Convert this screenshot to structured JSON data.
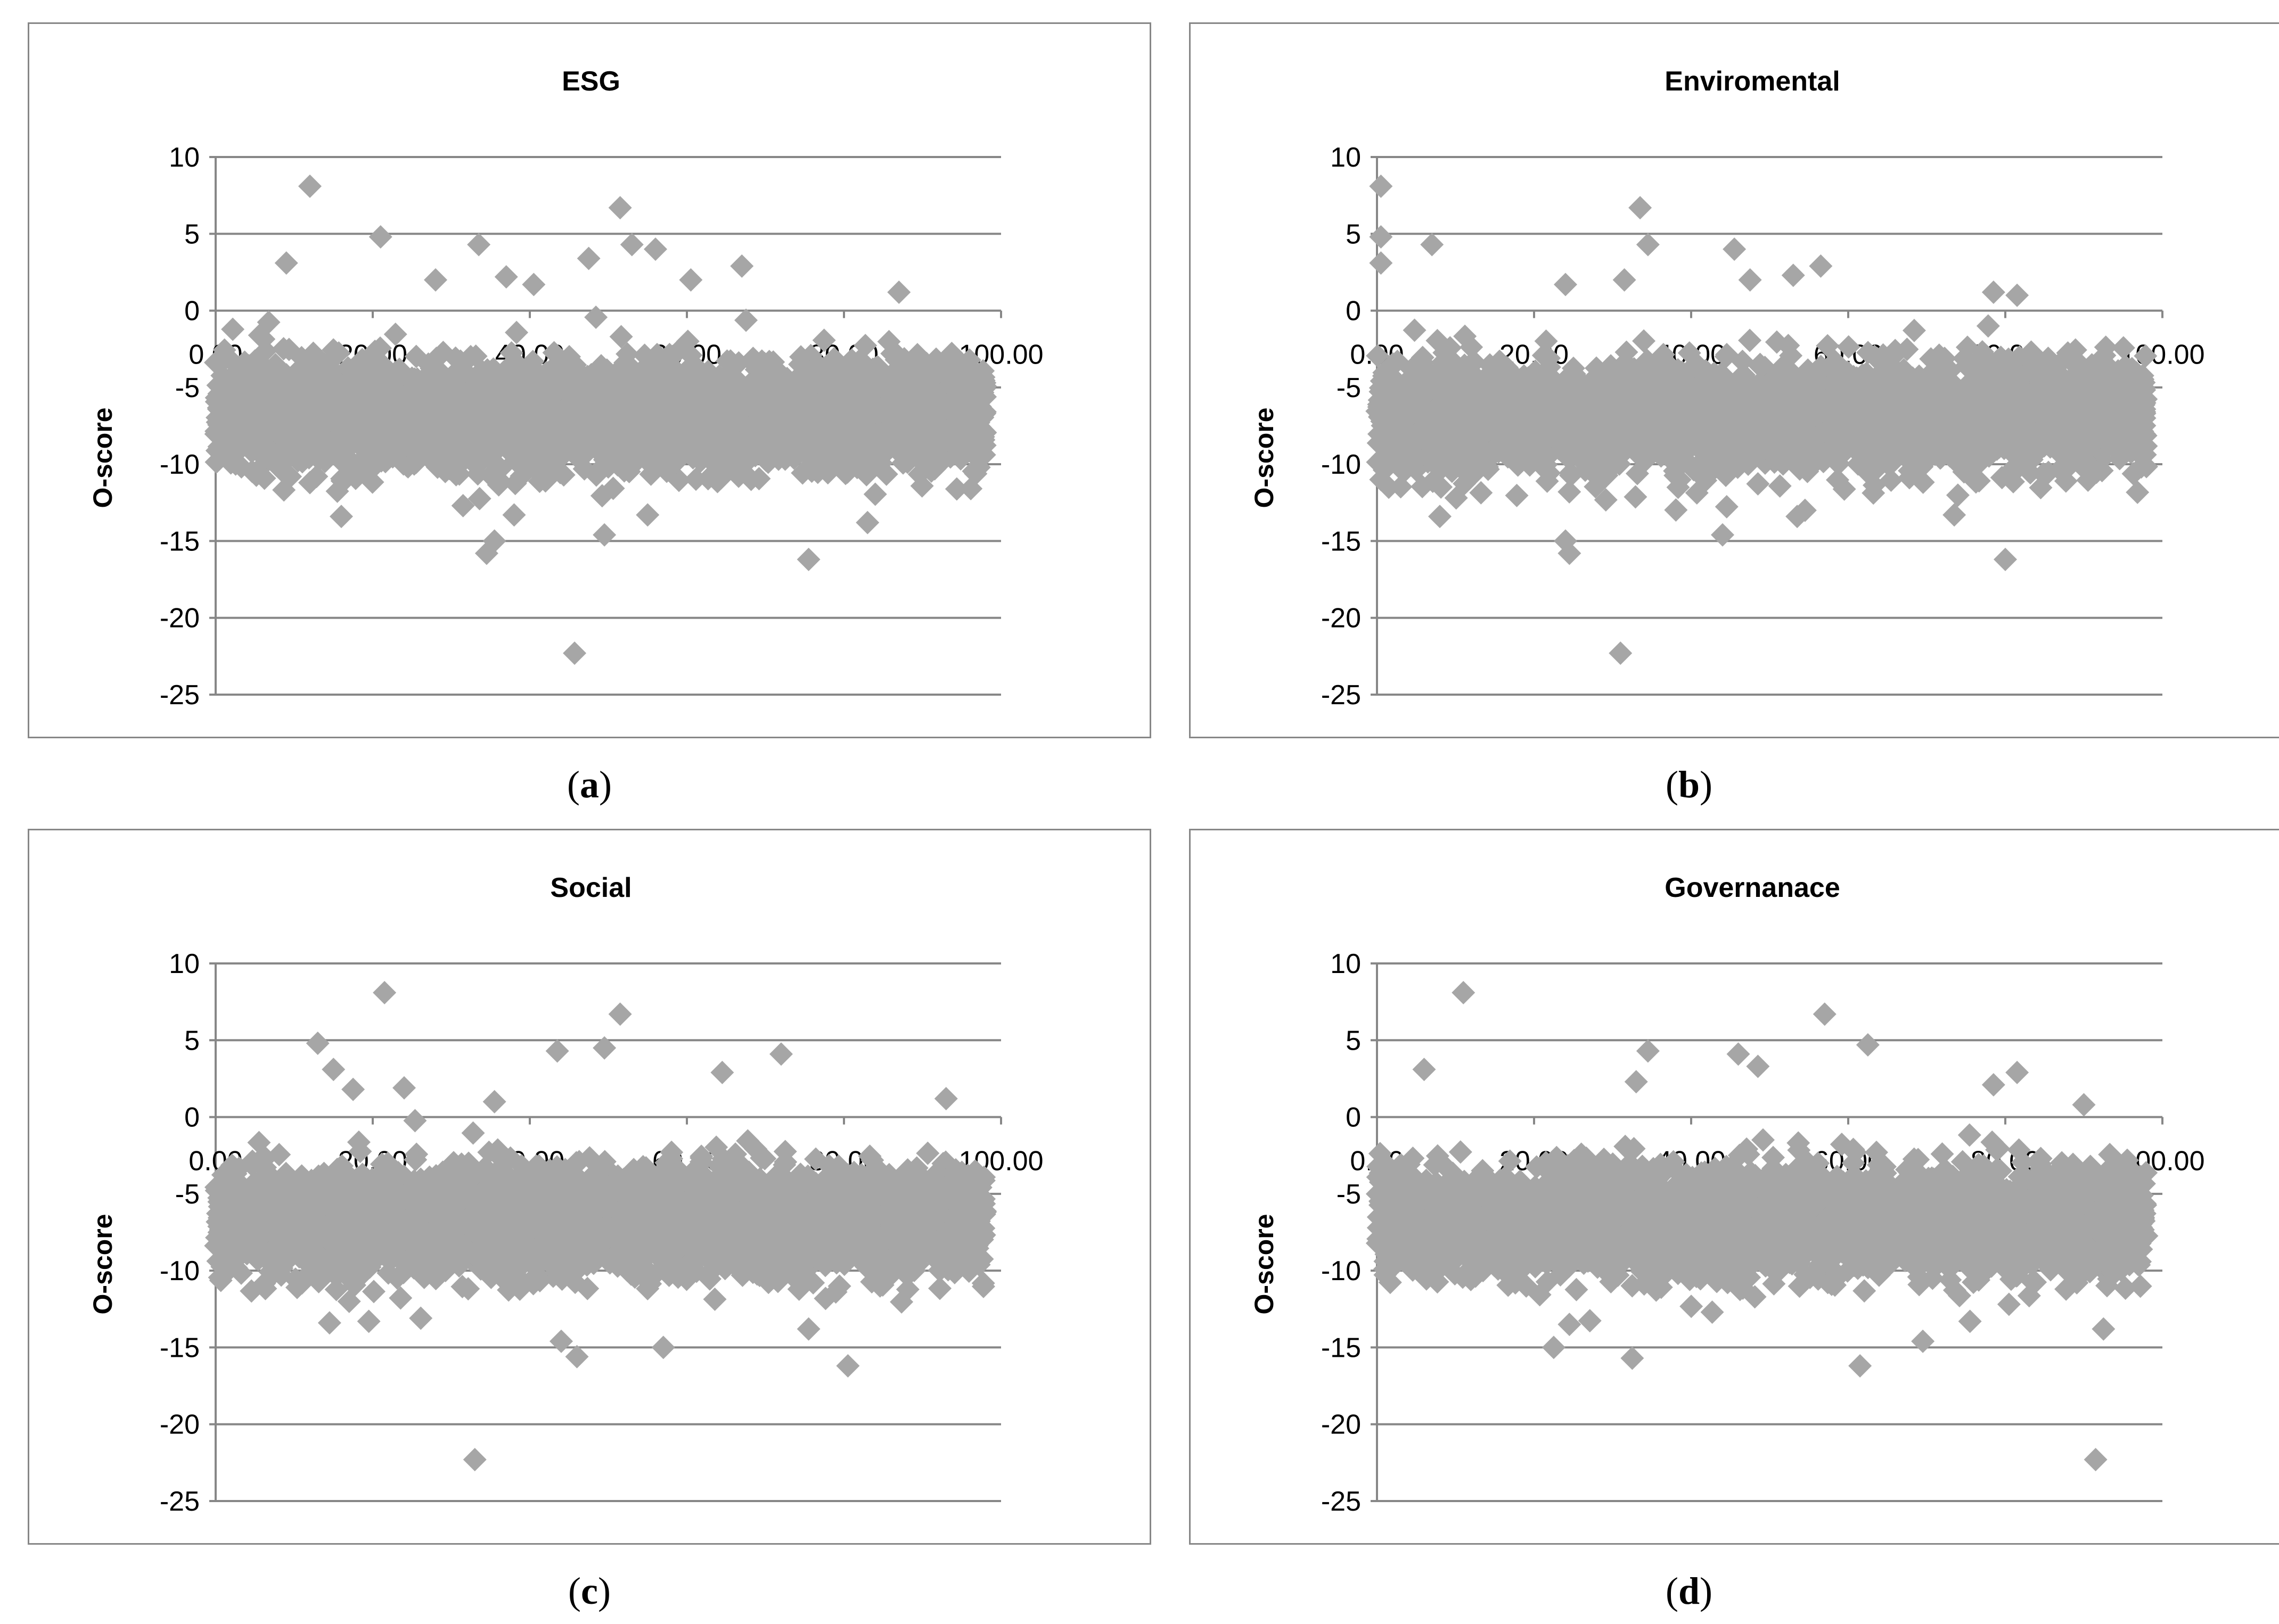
{
  "colors": {
    "marker": "#a6a6a6",
    "grid": "#878787",
    "frame": "#878787",
    "text": "#000000"
  },
  "chart_data": [
    {
      "type": "scatter",
      "panel": "a",
      "caption_paren_open": "(",
      "caption_letter": "a",
      "caption_paren_close": ")",
      "title": "ESG",
      "xlabel": "",
      "ylabel": "O-score",
      "xlim": [
        0,
        100
      ],
      "ylim": [
        -25,
        10
      ],
      "x_ticks": [
        "0.00",
        "20.00",
        "40.00",
        "60.00",
        "80.00",
        "100.00"
      ],
      "y_ticks": [
        "10",
        "5",
        "0",
        "-5",
        "-10",
        "-15",
        "-20",
        "-25"
      ],
      "n_points": 3200,
      "seed": 11,
      "x_range": [
        0,
        98
      ],
      "outliers": [
        [
          12.0,
          8.1
        ],
        [
          51.5,
          6.7
        ],
        [
          21.0,
          4.8
        ],
        [
          33.5,
          4.3
        ],
        [
          53.0,
          4.3
        ],
        [
          56.0,
          4.0
        ],
        [
          9.0,
          3.1
        ],
        [
          47.5,
          3.4
        ],
        [
          67.0,
          2.9
        ],
        [
          28.0,
          2.0
        ],
        [
          60.5,
          2.0
        ],
        [
          87.0,
          1.2
        ],
        [
          40.5,
          1.7
        ],
        [
          37.0,
          2.2
        ],
        [
          45.7,
          -22.3
        ],
        [
          75.5,
          -16.2
        ],
        [
          34.5,
          -15.8
        ],
        [
          35.5,
          -15.0
        ],
        [
          49.5,
          -14.6
        ],
        [
          83.0,
          -13.8
        ],
        [
          16.0,
          -13.4
        ],
        [
          38.0,
          -13.3
        ],
        [
          55.0,
          -13.3
        ],
        [
          31.5,
          -12.7
        ],
        [
          12.0,
          -11.2
        ],
        [
          9.5,
          -10.8
        ]
      ]
    },
    {
      "type": "scatter",
      "panel": "b",
      "caption_paren_open": "(",
      "caption_letter": "b",
      "caption_paren_close": ")",
      "title": "Enviromental",
      "xlabel": "",
      "ylabel": "O-score",
      "xlim": [
        0,
        100
      ],
      "ylim": [
        -25,
        10
      ],
      "x_ticks": [
        "0.00",
        "20.00",
        "40.00",
        "60.00",
        "80.00",
        "100.00"
      ],
      "y_ticks": [
        "10",
        "5",
        "0",
        "-5",
        "-10",
        "-15",
        "-20",
        "-25"
      ],
      "n_points": 3200,
      "seed": 23,
      "x_range": [
        0,
        98
      ],
      "outliers": [
        [
          0.5,
          8.1
        ],
        [
          33.5,
          6.7
        ],
        [
          0.5,
          4.8
        ],
        [
          7.0,
          4.3
        ],
        [
          34.5,
          4.3
        ],
        [
          45.5,
          4.0
        ],
        [
          0.5,
          3.1
        ],
        [
          56.5,
          2.9
        ],
        [
          53.0,
          2.3
        ],
        [
          31.5,
          2.0
        ],
        [
          47.5,
          2.0
        ],
        [
          78.5,
          1.2
        ],
        [
          81.5,
          1.0
        ],
        [
          24.0,
          1.7
        ],
        [
          31.0,
          -22.3
        ],
        [
          80.0,
          -16.2
        ],
        [
          24.5,
          -15.8
        ],
        [
          24.0,
          -15.0
        ],
        [
          44.0,
          -14.6
        ],
        [
          8.0,
          -13.4
        ],
        [
          53.5,
          -13.4
        ],
        [
          54.5,
          -13.0
        ],
        [
          73.5,
          -13.3
        ],
        [
          0.5,
          -11.0
        ],
        [
          1.5,
          -11.5
        ]
      ]
    },
    {
      "type": "scatter",
      "panel": "c",
      "caption_paren_open": "(",
      "caption_letter": "c",
      "caption_paren_close": ")",
      "title": "Social",
      "xlabel": "",
      "ylabel": "O-score",
      "xlim": [
        0,
        100
      ],
      "ylim": [
        -25,
        10
      ],
      "x_ticks": [
        "0.00",
        "20.00",
        "40.00",
        "60.00",
        "80.00",
        "100.00"
      ],
      "y_ticks": [
        "10",
        "5",
        "0",
        "-5",
        "-10",
        "-15",
        "-20",
        "-25"
      ],
      "n_points": 3200,
      "seed": 37,
      "x_range": [
        0,
        98
      ],
      "outliers": [
        [
          21.5,
          8.1
        ],
        [
          51.5,
          6.7
        ],
        [
          13.0,
          4.8
        ],
        [
          43.5,
          4.3
        ],
        [
          49.5,
          4.5
        ],
        [
          72.0,
          4.1
        ],
        [
          15.0,
          3.1
        ],
        [
          64.5,
          2.9
        ],
        [
          17.5,
          1.8
        ],
        [
          24.0,
          1.9
        ],
        [
          93.0,
          1.2
        ],
        [
          35.5,
          1.0
        ],
        [
          33.0,
          -22.3
        ],
        [
          80.5,
          -16.2
        ],
        [
          46.0,
          -15.6
        ],
        [
          57.0,
          -15.0
        ],
        [
          44.0,
          -14.6
        ],
        [
          14.5,
          -13.4
        ],
        [
          19.5,
          -13.3
        ],
        [
          75.5,
          -13.8
        ],
        [
          11.0,
          -10.8
        ],
        [
          17.0,
          -12.0
        ]
      ]
    },
    {
      "type": "scatter",
      "panel": "d",
      "caption_paren_open": "(",
      "caption_letter": "d",
      "caption_paren_close": ")",
      "title": "Governanace",
      "xlabel": "",
      "ylabel": "O-score",
      "xlim": [
        0,
        100
      ],
      "ylim": [
        -25,
        10
      ],
      "x_ticks": [
        "0.00",
        "20.00",
        "40.00",
        "60.00",
        "80.00",
        "100.00"
      ],
      "y_ticks": [
        "10",
        "5",
        "0",
        "-5",
        "-10",
        "-15",
        "-20",
        "-25"
      ],
      "n_points": 3200,
      "seed": 53,
      "x_range": [
        0,
        98
      ],
      "outliers": [
        [
          11.0,
          8.1
        ],
        [
          57.0,
          6.7
        ],
        [
          62.5,
          4.7
        ],
        [
          34.5,
          4.3
        ],
        [
          46.0,
          4.1
        ],
        [
          6.0,
          3.1
        ],
        [
          81.5,
          2.9
        ],
        [
          33.0,
          2.3
        ],
        [
          78.5,
          2.1
        ],
        [
          48.5,
          3.3
        ],
        [
          90.0,
          0.8
        ],
        [
          91.5,
          -22.3
        ],
        [
          61.5,
          -16.2
        ],
        [
          32.5,
          -15.7
        ],
        [
          22.5,
          -15.0
        ],
        [
          69.5,
          -14.6
        ],
        [
          24.5,
          -13.5
        ],
        [
          92.5,
          -13.8
        ],
        [
          75.5,
          -13.3
        ],
        [
          13.5,
          -10.0
        ],
        [
          19.0,
          -11.0
        ]
      ]
    }
  ]
}
